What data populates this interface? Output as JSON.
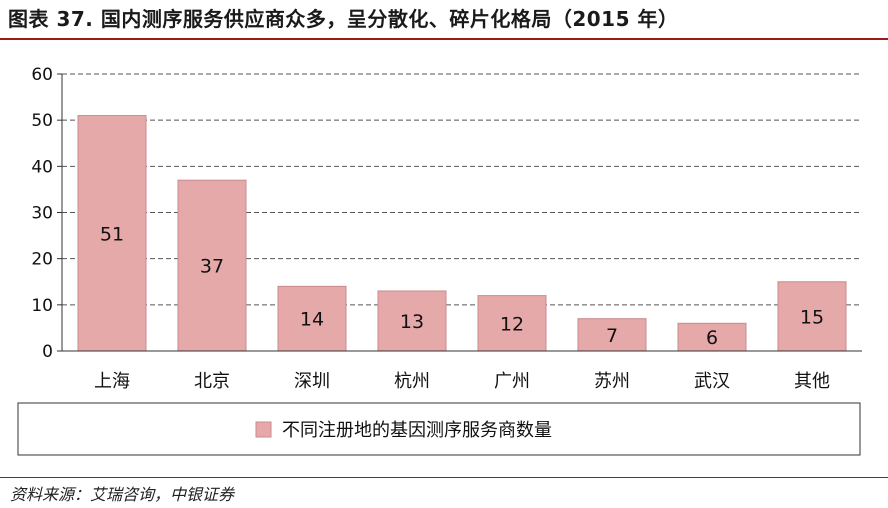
{
  "figure": {
    "title": "图表 37. 国内测序服务供应商众多，呈分散化、碎片化格局（2015 年）",
    "source": "资料来源：艾瑞咨询，中银证券"
  },
  "chart_data": {
    "type": "bar",
    "categories": [
      "上海",
      "北京",
      "深圳",
      "杭州",
      "广州",
      "苏州",
      "武汉",
      "其他"
    ],
    "series": [
      {
        "name": "不同注册地的基因测序服务商数量",
        "values": [
          51,
          37,
          14,
          13,
          12,
          7,
          6,
          15
        ],
        "color": "#e6a9aa"
      }
    ],
    "ylim": [
      0,
      60
    ],
    "yticks": [
      0,
      10,
      20,
      30,
      40,
      50,
      60
    ],
    "grid": "horizontal-dashed",
    "legend": "bottom",
    "data_labels": true
  }
}
